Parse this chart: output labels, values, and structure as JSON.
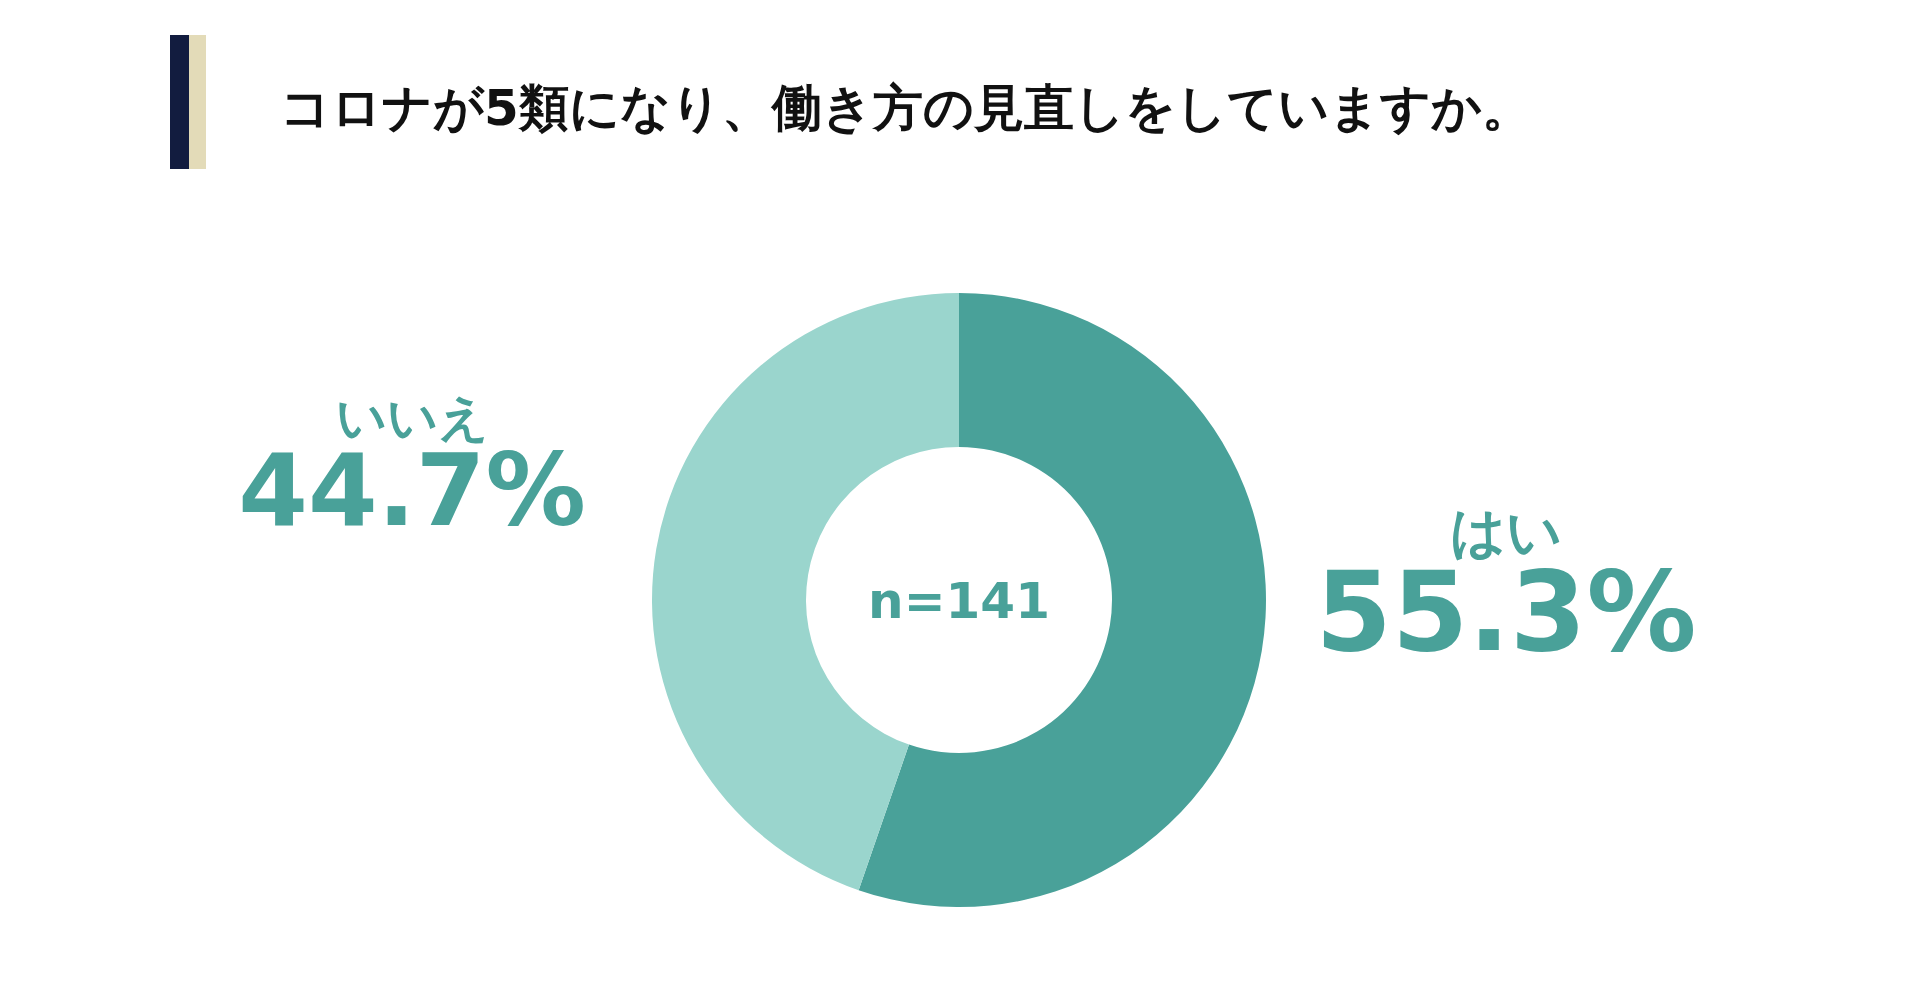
{
  "chart_data": {
    "type": "donut",
    "title": "コロナが5類になり、働き方の見直しをしていますか。",
    "categories": [
      "はい",
      "いいえ"
    ],
    "values": [
      55.3,
      44.7
    ],
    "colors": [
      "#49a199",
      "#9ad5cd"
    ],
    "value_labels": [
      "55.3%",
      "44.7%"
    ],
    "annotations": [
      "n=141"
    ]
  }
}
